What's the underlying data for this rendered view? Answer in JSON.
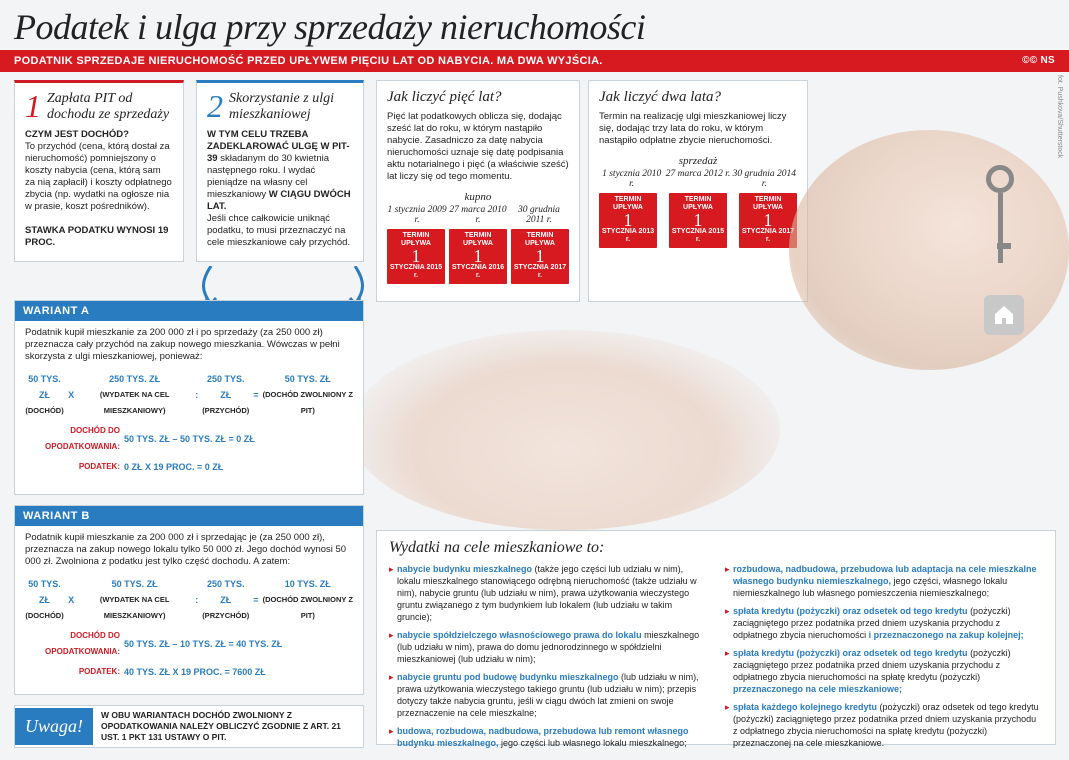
{
  "title": "Podatek i ulga przy sprzedaży nieruchomości",
  "redbar": "PODATNIK SPRZEDAJE NIERUCHOMOŚĆ PRZED UPŁYWEM PIĘCIU LAT OD NABYCIA. MA DWA WYJŚCIA.",
  "cc": "©© NS",
  "credit": "fot. Pushkova/Shutterstock",
  "colors": {
    "red": "#d71920",
    "blue": "#2a7cc0",
    "bg": "#f2f4f6",
    "box_border": "#c8d2db"
  },
  "option1": {
    "num": "1",
    "title": "Zapłata PIT od dochodu ze sprzedaży",
    "q": "Czym jest dochód?",
    "body": "To przychód (cena, którą dostał za nieruchomość) pomniejszony o koszty nabycia (cena, którą sam za nią zapłacił) i koszty odpłatnego zbycia (np. wydatki na ogłosze nia w prasie, koszt pośredników).",
    "rate": "Stawka podatku wynosi 19 proc."
  },
  "option2": {
    "num": "2",
    "title": "Skorzystanie z ulgi mieszkaniowej",
    "body1_b": "W tym celu trzeba zadeklarować ulgę w PIT-39",
    "body1": " składanym do 30 kwietnia następnego roku. I wydać pieniądze na własny cel mieszkaniowy ",
    "body1_b2": "w ciągu dwóch lat.",
    "body2": "Jeśli chce całkowicie uniknąć podatku, to musi przeznaczyć na cele mieszkaniowe cały przychód."
  },
  "five": {
    "head": "Jak liczyć pięć lat?",
    "txt": "Pięć lat podatkowych oblicza się, dodając sześć lat do roku, w którym nastąpiło nabycie. Zasadniczo za datę nabycia nieruchomości uznaje się datę podpisania aktu notarialnego i pięć (a właściwie sześć) lat liczy się od tego momentu.",
    "label": "kupno",
    "dates": [
      "1 stycznia 2009 r.",
      "27 marca 2010 r.",
      "30 grudnia 2011 r."
    ],
    "termin_top": "TERMIN UPŁYWA",
    "termins": [
      "1",
      "1",
      "1"
    ],
    "termin_dates": [
      "STYCZNIA 2015 r.",
      "STYCZNIA 2016 r.",
      "STYCZNIA 2017 r."
    ]
  },
  "two": {
    "head": "Jak liczyć dwa lata?",
    "txt": "Termin na realizację ulgi mieszkaniowej liczy się, dodając trzy lata do roku, w którym nastąpiło odpłatne zbycie nieruchomości.",
    "label": "sprzedaż",
    "dates": [
      "1 stycznia 2010 r.",
      "27 marca 2012 r.",
      "30 grudnia 2014 r."
    ],
    "termin_top": "TERMIN UPŁYWA",
    "termins": [
      "1",
      "1",
      "1"
    ],
    "termin_dates": [
      "STYCZNIA 2013 r.",
      "STYCZNIA 2015 r.",
      "STYCZNIA 2017 r."
    ]
  },
  "varA": {
    "head": "WARIANT A",
    "intro": "Podatnik kupił mieszkanie za 200 000 zł i po sprzedaży (za 250 000 zł) przeznacza cały przychód na zakup nowego mieszkania. Wówczas w pełni skorzysta z ulgi mieszkaniowej, ponieważ:",
    "f1": {
      "a": "50 TYS. ZŁ",
      "al": "(DOCHÓD)",
      "b": "250 TYS. ZŁ",
      "bl": "(WYDATEK NA CEL MIESZKANIOWY)",
      "c": "250 TYS. ZŁ",
      "cl": "(PRZYCHÓD)",
      "d": "50 TYS. ZŁ",
      "dl": "(DOCHÓD ZWOLNIONY Z PIT)"
    },
    "f2_lbl": "Dochód do opodatkowania:",
    "f2": "50 TYS. ZŁ  –  50 TYS. ZŁ  =  0 ZŁ",
    "f3_lbl": "Podatek:",
    "f3": "0 ZŁ  X  19 PROC.  =  0 ZŁ"
  },
  "varB": {
    "head": "WARIANT B",
    "intro": "Podatnik kupił mieszkanie za 200 000 zł i sprzedając je (za 250 000 zł), przeznacza na zakup nowego lokalu tylko 50 000 zł. Jego dochód wynosi 50 000 zł. Zwolniona z podatku jest tylko część dochodu. A zatem:",
    "f1": {
      "a": "50 TYS. ZŁ",
      "al": "(DOCHÓD)",
      "b": "50 TYS. ZŁ",
      "bl": "(WYDATEK NA CEL MIESZKANIOWY)",
      "c": "250 TYS. ZŁ",
      "cl": "(PRZYCHÓD)",
      "d": "10 TYS. ZŁ",
      "dl": "(DOCHÓD ZWOLNIONY Z PIT)"
    },
    "f2_lbl": "Dochód do opodatkowania:",
    "f2": "50 TYS. ZŁ  –  10 TYS. ZŁ  =  40 TYS. ZŁ",
    "f3_lbl": "Podatek:",
    "f3": "40 TYS. ZŁ  X  19 PROC.  =  7600 ZŁ"
  },
  "uwaga": {
    "label": "Uwaga!",
    "text": "W OBU WARIANTACH DOCHÓD ZWOLNIONY Z OPODATKOWANIA NALEŻY OBLICZYĆ ZGODNIE Z ART. 21 UST. 1 PKT 131 USTAWY O PIT."
  },
  "wydatki": {
    "head": "Wydatki na cele mieszkaniowe to:",
    "col1": [
      {
        "b": "nabycie budynku mieszkalnego",
        "t": " (także jego części lub udziału w nim), lokalu mieszkalnego stanowiącego odrębną nieruchomość (także udziału w nim), nabycie gruntu (lub udziału w nim), prawa użytkowania wieczystego gruntu związanego z tym budynkiem lub lokalem (lub udziału w takim gruncie);"
      },
      {
        "b": "nabycie spółdzielczego własnościowego prawa do lokalu",
        "t": " mieszkalnego (lub udziału w nim), prawa do domu jednorodzinnego w spółdzielni mieszkaniowej (lub udziału w nim);"
      },
      {
        "b": "nabycie gruntu pod budowę budynku mieszkalnego",
        "t": " (lub udziału w nim), prawa użytkowania wieczystego takiego gruntu (lub udziału w nim); przepis dotyczy także nabycia gruntu, jeśli w ciągu dwóch lat zmieni on swoje przeznaczenie na cele mieszkalne;"
      },
      {
        "b": "budowa, rozbudowa, nadbudowa, przebudowa lub remont własnego budynku mieszkalnego,",
        "t": " jego części lub własnego lokalu mieszkalnego;"
      }
    ],
    "col2": [
      {
        "b": "rozbudowa, nadbudowa, przebudowa lub adaptacja na cele mieszkalne własnego budynku niemieszkalnego,",
        "t": " jego części, własnego lokalu niemieszkalnego lub własnego pomieszczenia niemieszkalnego;"
      },
      {
        "b": "spłata kredytu (pożyczki) oraz odsetek od tego kredytu",
        "t": " (pożyczki) zaciągniętego przez podatnika przed dniem uzyskania przychodu z odpłatnego zbycia nieruchomości ",
        "b2": "i przeznaczonego na zakup kolejnej;"
      },
      {
        "b": "spłata kredytu (pożyczki) oraz odsetek od tego kredytu",
        "t": " (pożyczki) zaciągniętego przez podatnika przed dniem uzyskania przychodu z odpłatnego zbycia nieruchomości na spłatę kredytu (pożyczki) ",
        "b2": "przeznaczonego na cele mieszkaniowe;"
      },
      {
        "b": "spłata każdego kolejnego kredytu",
        "t": " (pożyczki) oraz odsetek od tego kredytu (pożyczki) zaciągniętego przez podatnika przed dniem uzyskania przychodu z odpłatnego zbycia nieruchomości na spłatę kredytu (pożyczki) przeznaczonej na cele mieszkaniowe."
      }
    ]
  }
}
